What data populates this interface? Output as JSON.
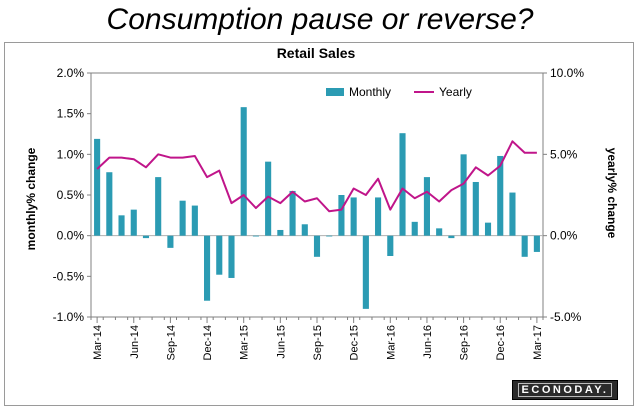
{
  "page": {
    "headline": "Consumption pause or reverse?"
  },
  "branding": {
    "badge_text": "ECONODAY."
  },
  "chart_data": {
    "type": "bar",
    "title": "Retail Sales",
    "ylabel": "monthly% change",
    "y2label": "yearly% change",
    "ylim": [
      -1.0,
      2.0
    ],
    "y2lim": [
      -5.0,
      10.0
    ],
    "yticks": [
      "2.0%",
      "1.5%",
      "1.0%",
      "0.5%",
      "0.0%",
      "-0.5%",
      "-1.0%"
    ],
    "y2ticks": [
      "10.0%",
      "5.0%",
      "0.0%",
      "-5.0%"
    ],
    "xtick_labels": [
      "Mar-14",
      "Jun-14",
      "Sep-14",
      "Dec-14",
      "Mar-15",
      "Jun-15",
      "Sep-15",
      "Dec-15",
      "Mar-16",
      "Jun-16",
      "Sep-16",
      "Dec-16",
      "Mar-17"
    ],
    "categories": [
      "Mar-14",
      "Apr-14",
      "May-14",
      "Jun-14",
      "Jul-14",
      "Aug-14",
      "Sep-14",
      "Oct-14",
      "Nov-14",
      "Dec-14",
      "Jan-15",
      "Feb-15",
      "Mar-15",
      "Apr-15",
      "May-15",
      "Jun-15",
      "Jul-15",
      "Aug-15",
      "Sep-15",
      "Oct-15",
      "Nov-15",
      "Dec-15",
      "Jan-16",
      "Feb-16",
      "Mar-16",
      "Apr-16",
      "May-16",
      "Jun-16",
      "Jul-16",
      "Aug-16",
      "Sep-16",
      "Oct-16",
      "Nov-16",
      "Dec-16",
      "Jan-17",
      "Feb-17",
      "Mar-17"
    ],
    "legend_position": "top-right",
    "grid": false,
    "series": [
      {
        "name": "Monthly",
        "type": "bar",
        "axis": "left",
        "color": "#2b9bb3",
        "values": [
          1.19,
          0.78,
          0.25,
          0.32,
          -0.03,
          0.72,
          -0.15,
          0.43,
          0.37,
          -0.8,
          -0.48,
          -0.52,
          1.58,
          -0.01,
          0.91,
          0.07,
          0.55,
          0.14,
          -0.26,
          0.0,
          0.5,
          0.47,
          -0.9,
          0.47,
          -0.25,
          1.26,
          0.17,
          0.72,
          0.09,
          -0.03,
          1.0,
          0.66,
          0.16,
          0.98,
          0.53,
          -0.26,
          -0.2
        ]
      },
      {
        "name": "Yearly",
        "type": "line",
        "axis": "right",
        "color": "#c0158a",
        "values": [
          4.1,
          4.8,
          4.8,
          4.7,
          4.2,
          5.0,
          4.8,
          4.8,
          4.9,
          3.6,
          4.0,
          2.0,
          2.5,
          1.7,
          2.4,
          2.0,
          2.7,
          2.1,
          2.3,
          1.5,
          1.6,
          2.9,
          2.5,
          3.5,
          1.6,
          2.9,
          2.3,
          2.7,
          2.1,
          2.8,
          3.2,
          4.2,
          3.7,
          4.3,
          5.8,
          5.1,
          5.1
        ]
      }
    ]
  }
}
